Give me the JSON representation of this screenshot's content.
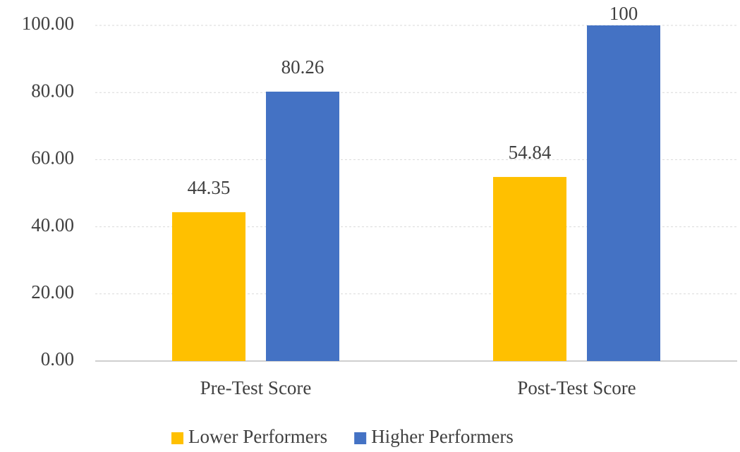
{
  "chart_data": {
    "type": "bar",
    "categories": [
      "Pre-Test Score",
      "Post-Test Score"
    ],
    "series": [
      {
        "name": "Lower Performers",
        "color": "#ffc000",
        "values": [
          44.35,
          54.84
        ]
      },
      {
        "name": "Higher Performers",
        "color": "#4472c4",
        "values": [
          80.26,
          100
        ]
      }
    ],
    "ylim": [
      0,
      100
    ],
    "yticks": [
      {
        "value": 0,
        "label": "0.00"
      },
      {
        "value": 20,
        "label": "20.00"
      },
      {
        "value": 40,
        "label": "40.00"
      },
      {
        "value": 60,
        "label": "60.00"
      },
      {
        "value": 80,
        "label": "80.00"
      },
      {
        "value": 100,
        "label": "100.00"
      }
    ],
    "grid": true,
    "legend": "bottom"
  }
}
